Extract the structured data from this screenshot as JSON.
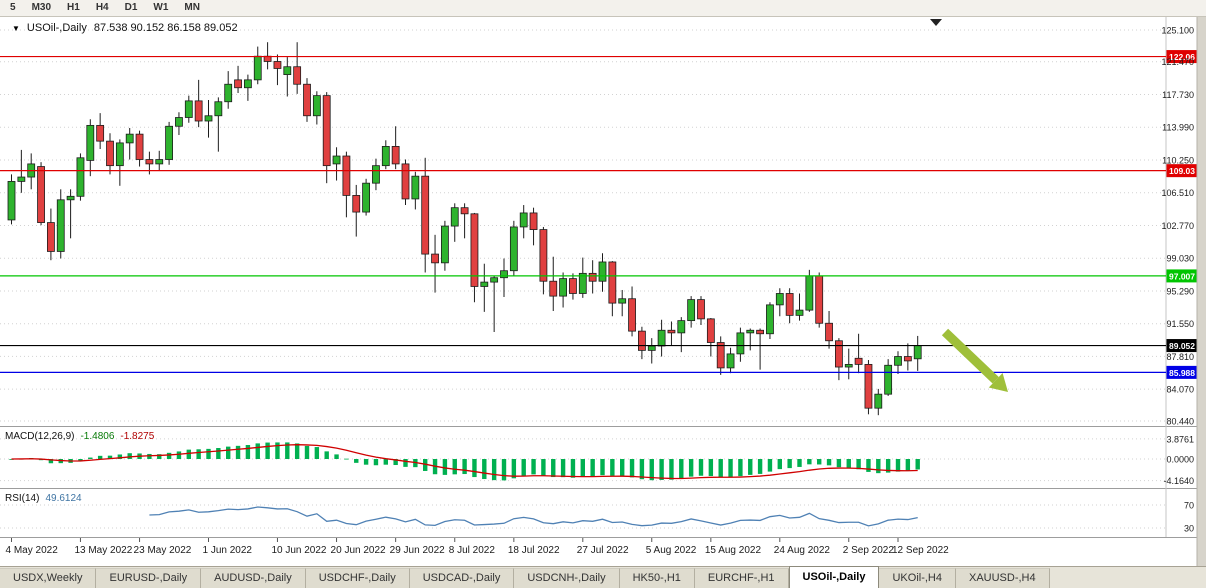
{
  "toolbar": {
    "timeframes": [
      "5",
      "M30",
      "H1",
      "H4",
      "D1",
      "W1",
      "MN"
    ]
  },
  "chart_header": {
    "dropdown_icon": "▼",
    "symbol": "USOil-,Daily",
    "ohlc": "87.538 90.152 86.158 89.052"
  },
  "price_scale": {
    "labels": [
      "125.100",
      "121.470",
      "117.730",
      "113.990",
      "110.250",
      "106.510",
      "102.770",
      "99.030",
      "95.290",
      "91.550",
      "87.810",
      "84.070",
      "80.440"
    ]
  },
  "hlines": [
    {
      "price": 122.06,
      "label": "122.06",
      "color": "#e00000"
    },
    {
      "price": 109.03,
      "label": "109.03",
      "color": "#e00000"
    },
    {
      "price": 97.007,
      "label": "97.007",
      "color": "#00c500"
    },
    {
      "price": 89.052,
      "label": "89.052",
      "color": "#000000"
    },
    {
      "price": 85.988,
      "label": "85.988",
      "color": "#0000e6"
    }
  ],
  "annotation_arrow": {
    "color": "#9fbf3a",
    "from": [
      945,
      315
    ],
    "to": [
      1008,
      375
    ]
  },
  "shift_marker": {
    "x": 936
  },
  "macd_panel": {
    "label": "MACD(12,26,9)",
    "value_main": "-1.4806",
    "value_signal": "-1.8275",
    "scale_labels": [
      {
        "text": "3.8761",
        "value": 3.8761
      },
      {
        "text": "0.0000",
        "value": 0
      },
      {
        "text": "-4.1640",
        "value": -4.164
      }
    ],
    "histogram_color": "#00b050",
    "signal_color": "#d00000"
  },
  "rsi_panel": {
    "label": "RSI(14)",
    "value": "49.6124",
    "levels": [
      {
        "text": "70",
        "value": 70
      },
      {
        "text": "30",
        "value": 30
      }
    ],
    "line_color": "#4f81b4"
  },
  "x_axis": {
    "labels": [
      "4 May 2022",
      "13 May 2022",
      "23 May 2022",
      "1 Jun 2022",
      "10 Jun 2022",
      "20 Jun 2022",
      "29 Jun 2022",
      "8 Jul 2022",
      "18 Jul 2022",
      "27 Jul 2022",
      "5 Aug 2022",
      "15 Aug 2022",
      "24 Aug 2022",
      "2 Sep 2022",
      "12 Sep 2022"
    ],
    "indices": [
      0,
      7,
      13,
      20,
      27,
      33,
      39,
      45,
      51,
      58,
      65,
      71,
      78,
      85,
      90
    ]
  },
  "chart_data": {
    "type": "candlestick",
    "symbol": "USOil-,Daily",
    "timeframe": "Daily",
    "title": "USOil-,Daily 87.538 90.152 86.158 89.052",
    "ohlc_current": {
      "open": 87.538,
      "high": 90.152,
      "low": 86.158,
      "close": 89.052
    },
    "y_range": [
      80.44,
      126.58
    ],
    "up_color": "#2eb32e",
    "down_color": "#e04040",
    "wick_color": "#1c1c1c",
    "indicators": {
      "macd_params": [
        12,
        26,
        9
      ],
      "rsi_period": 14
    },
    "candles": [
      [
        103.4,
        108.6,
        102.9,
        107.8
      ],
      [
        107.8,
        111.4,
        106.5,
        108.3
      ],
      [
        108.3,
        111.0,
        106.9,
        109.8
      ],
      [
        109.5,
        110.0,
        102.8,
        103.1
      ],
      [
        103.1,
        104.7,
        98.8,
        99.8
      ],
      [
        99.8,
        106.9,
        99.0,
        105.7
      ],
      [
        105.7,
        106.9,
        101.3,
        106.1
      ],
      [
        106.1,
        111.0,
        105.6,
        110.5
      ],
      [
        110.2,
        114.9,
        108.4,
        114.2
      ],
      [
        114.2,
        115.6,
        111.5,
        112.4
      ],
      [
        112.4,
        113.3,
        108.6,
        109.6
      ],
      [
        109.6,
        112.6,
        107.3,
        112.2
      ],
      [
        112.2,
        113.9,
        110.3,
        113.2
      ],
      [
        113.2,
        113.6,
        109.5,
        110.3
      ],
      [
        110.3,
        111.2,
        108.6,
        109.8
      ],
      [
        109.8,
        111.3,
        109.0,
        110.3
      ],
      [
        110.3,
        114.6,
        109.7,
        114.1
      ],
      [
        114.1,
        115.7,
        113.1,
        115.1
      ],
      [
        115.1,
        117.6,
        114.5,
        117.0
      ],
      [
        117.0,
        119.4,
        114.0,
        114.7
      ],
      [
        114.7,
        117.1,
        112.8,
        115.3
      ],
      [
        115.3,
        117.4,
        111.2,
        116.9
      ],
      [
        116.9,
        120.4,
        116.1,
        118.9
      ],
      [
        119.4,
        121.0,
        117.9,
        118.5
      ],
      [
        118.5,
        120.0,
        117.0,
        119.4
      ],
      [
        119.4,
        123.2,
        118.9,
        122.1
      ],
      [
        122.1,
        123.7,
        120.6,
        121.5
      ],
      [
        121.5,
        122.3,
        118.8,
        120.7
      ],
      [
        120.0,
        122.0,
        117.5,
        120.9
      ],
      [
        120.9,
        123.7,
        117.8,
        118.9
      ],
      [
        118.9,
        119.6,
        114.6,
        115.3
      ],
      [
        115.3,
        118.1,
        114.3,
        117.6
      ],
      [
        117.6,
        118.0,
        107.6,
        109.6
      ],
      [
        109.8,
        111.7,
        107.9,
        110.7
      ],
      [
        110.7,
        111.2,
        103.7,
        106.2
      ],
      [
        106.2,
        107.4,
        101.5,
        104.3
      ],
      [
        104.3,
        108.1,
        103.9,
        107.6
      ],
      [
        107.6,
        110.4,
        106.8,
        109.6
      ],
      [
        109.6,
        112.5,
        109.2,
        111.8
      ],
      [
        111.8,
        114.1,
        109.2,
        109.8
      ],
      [
        109.8,
        110.3,
        105.1,
        105.8
      ],
      [
        105.8,
        108.9,
        104.6,
        108.4
      ],
      [
        108.4,
        110.5,
        97.4,
        99.5
      ],
      [
        99.5,
        101.7,
        95.1,
        98.5
      ],
      [
        98.5,
        103.3,
        97.6,
        102.7
      ],
      [
        102.7,
        105.3,
        100.9,
        104.8
      ],
      [
        104.8,
        105.3,
        101.3,
        104.1
      ],
      [
        104.1,
        104.2,
        94.0,
        95.8
      ],
      [
        95.8,
        98.4,
        92.9,
        96.3
      ],
      [
        96.3,
        97.0,
        90.6,
        96.8
      ],
      [
        96.8,
        99.0,
        94.6,
        97.6
      ],
      [
        97.6,
        103.3,
        97.0,
        102.6
      ],
      [
        102.6,
        105.1,
        101.3,
        104.2
      ],
      [
        104.2,
        104.8,
        100.5,
        102.3
      ],
      [
        102.3,
        102.6,
        94.9,
        96.4
      ],
      [
        96.4,
        99.2,
        93.0,
        94.7
      ],
      [
        94.7,
        97.4,
        93.4,
        96.7
      ],
      [
        96.7,
        97.3,
        94.3,
        95.0
      ],
      [
        95.0,
        99.1,
        94.5,
        97.3
      ],
      [
        97.3,
        98.8,
        95.0,
        96.4
      ],
      [
        96.4,
        99.6,
        95.2,
        98.6
      ],
      [
        98.6,
        98.7,
        92.4,
        93.9
      ],
      [
        93.9,
        95.4,
        92.4,
        94.4
      ],
      [
        94.4,
        95.8,
        90.1,
        90.7
      ],
      [
        90.7,
        91.2,
        87.5,
        88.5
      ],
      [
        88.5,
        89.9,
        87.0,
        89.0
      ],
      [
        89.0,
        92.0,
        87.8,
        90.8
      ],
      [
        90.8,
        91.8,
        89.0,
        90.5
      ],
      [
        90.5,
        92.3,
        88.3,
        91.9
      ],
      [
        91.9,
        94.7,
        91.1,
        94.3
      ],
      [
        94.3,
        94.7,
        91.4,
        92.1
      ],
      [
        92.1,
        92.2,
        87.8,
        89.4
      ],
      [
        89.4,
        90.1,
        85.7,
        86.5
      ],
      [
        86.5,
        88.8,
        85.9,
        88.1
      ],
      [
        88.1,
        91.1,
        87.2,
        90.5
      ],
      [
        90.5,
        91.0,
        88.5,
        90.8
      ],
      [
        90.8,
        91.0,
        86.3,
        90.4
      ],
      [
        90.4,
        94.0,
        89.8,
        93.7
      ],
      [
        93.7,
        95.6,
        92.4,
        95.0
      ],
      [
        95.0,
        95.6,
        91.6,
        92.5
      ],
      [
        92.5,
        95.0,
        91.9,
        93.1
      ],
      [
        93.1,
        97.7,
        92.9,
        97.0
      ],
      [
        97.0,
        97.4,
        91.1,
        91.6
      ],
      [
        91.6,
        93.0,
        88.7,
        89.6
      ],
      [
        89.6,
        89.9,
        85.1,
        86.6
      ],
      [
        86.6,
        88.7,
        85.2,
        86.9
      ],
      [
        87.6,
        90.4,
        85.9,
        86.9
      ],
      [
        86.9,
        87.4,
        81.2,
        81.9
      ],
      [
        81.9,
        84.1,
        81.1,
        83.5
      ],
      [
        83.5,
        87.5,
        83.3,
        86.8
      ],
      [
        86.8,
        88.4,
        85.8,
        87.8
      ],
      [
        87.8,
        89.3,
        86.2,
        87.3
      ],
      [
        87.538,
        90.152,
        86.158,
        89.052
      ]
    ]
  },
  "tabs": {
    "items": [
      "USDX,Weekly",
      "EURUSD-,Daily",
      "AUDUSD-,Daily",
      "USDCHF-,Daily",
      "USDCAD-,Daily",
      "USDCNH-,Daily",
      "HK50-,H1",
      "EURCHF-,H1",
      "USOil-,Daily",
      "UKOil-,H4",
      "XAUUSD-,H4"
    ],
    "active_index": 8
  }
}
